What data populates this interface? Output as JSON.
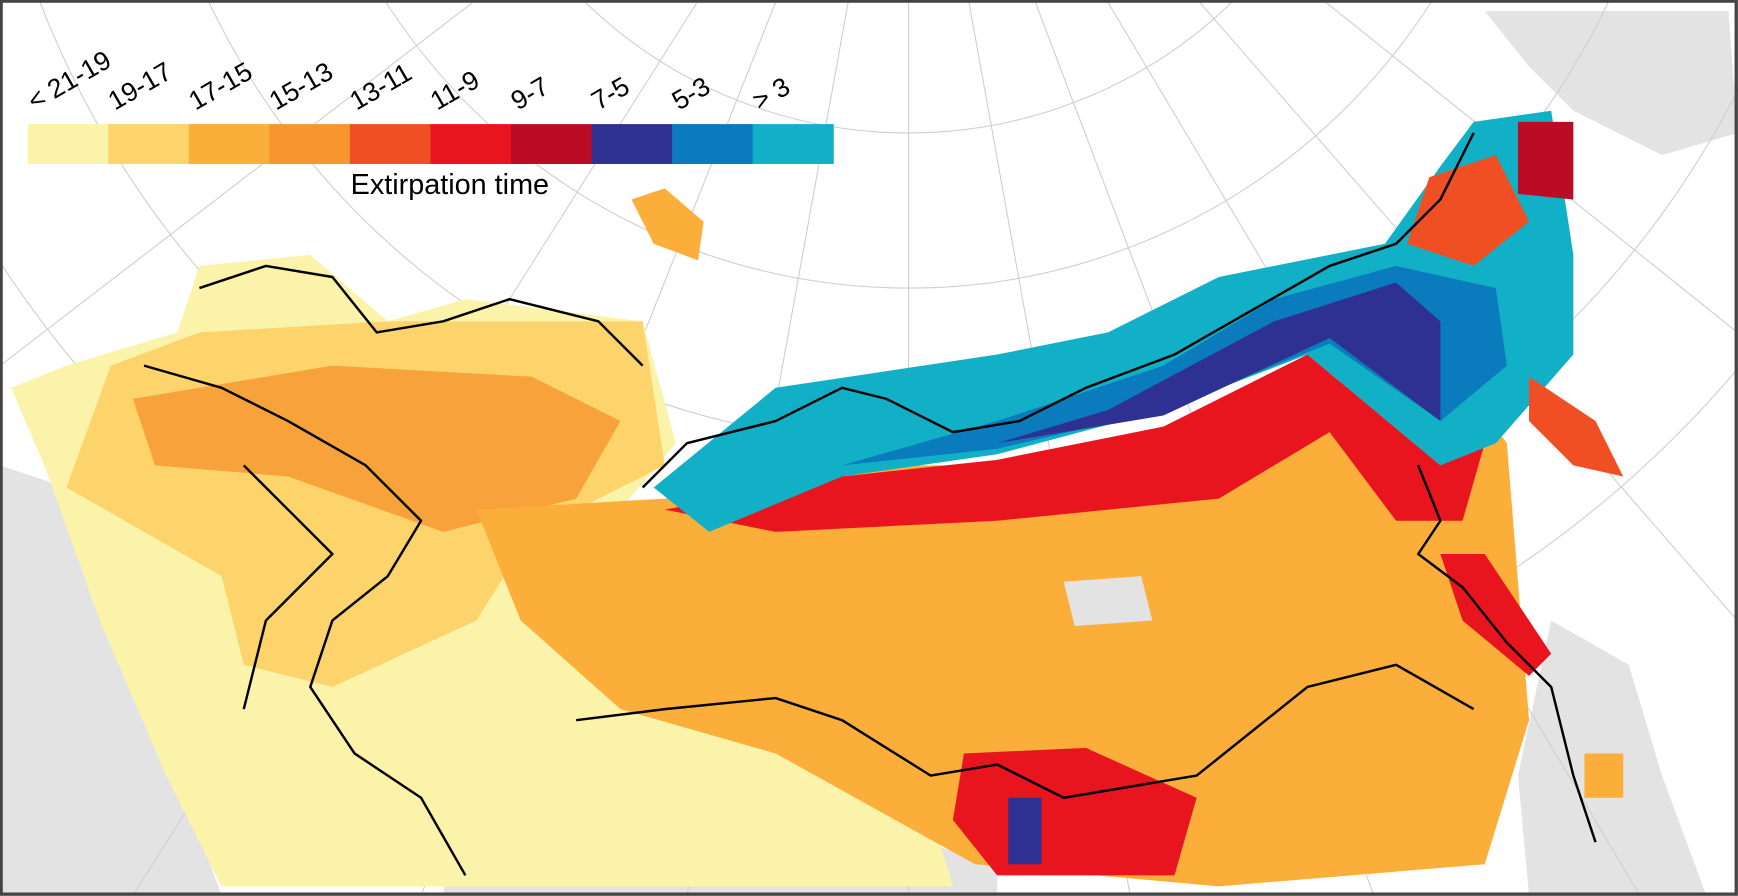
{
  "legend": {
    "title": "Extirpation time",
    "items": [
      {
        "label": "< 21-19",
        "color": "#fbf3a9"
      },
      {
        "label": "19-17",
        "color": "#fdd46b"
      },
      {
        "label": "17-15",
        "color": "#fbae3a"
      },
      {
        "label": "15-13",
        "color": "#f7952f"
      },
      {
        "label": "13-11",
        "color": "#f04e23"
      },
      {
        "label": "11-9",
        "color": "#e8141e"
      },
      {
        "label": "9-7",
        "color": "#bb0b25"
      },
      {
        "label": "7-5",
        "color": "#2e3192"
      },
      {
        "label": "5-3",
        "color": "#0a7bbd"
      },
      {
        "label": "> 3",
        "color": "#12b0c6"
      }
    ]
  }
}
